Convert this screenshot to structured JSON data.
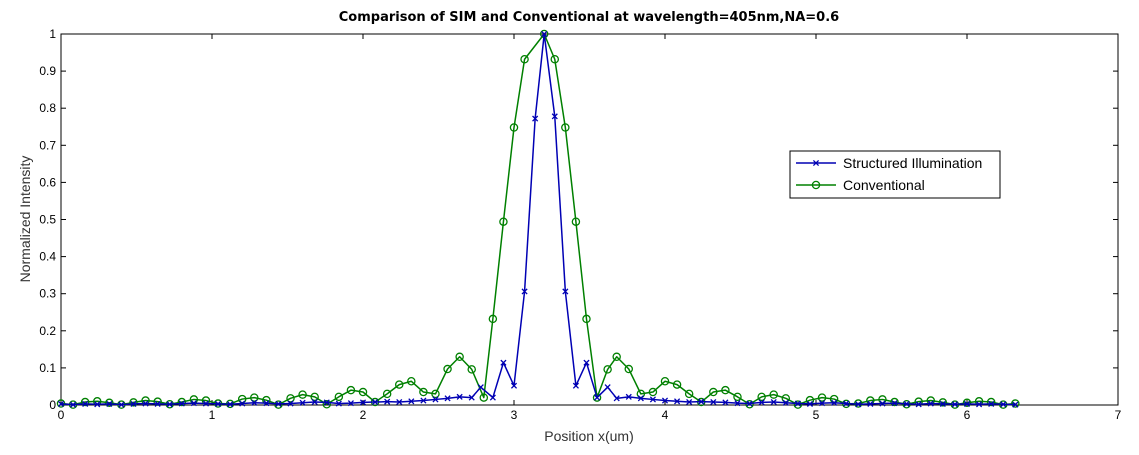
{
  "chart_data": {
    "type": "line",
    "title": "Comparison of SIM and Conventional at wavelength=405nm,NA=0.6",
    "xlabel": "Position x(um)",
    "ylabel": "Normalized Intensity",
    "xlim": [
      0,
      7
    ],
    "ylim": [
      0,
      1
    ],
    "xticks": [
      0,
      1,
      2,
      3,
      4,
      5,
      6,
      7
    ],
    "yticks": [
      0,
      0.1,
      0.2,
      0.3,
      0.4,
      0.5,
      0.6,
      0.7,
      0.8,
      0.9,
      1
    ],
    "grid": false,
    "legend_position": "center-right",
    "series": [
      {
        "name": "Structured Illumination",
        "color": "#0000b4",
        "marker": "x",
        "points": [
          [
            0.0,
            0.003
          ],
          [
            0.08,
            0.001
          ],
          [
            0.16,
            0.003
          ],
          [
            0.24,
            0.002
          ],
          [
            0.32,
            0.003
          ],
          [
            0.4,
            0.001
          ],
          [
            0.48,
            0.003
          ],
          [
            0.56,
            0.004
          ],
          [
            0.64,
            0.003
          ],
          [
            0.72,
            0.002
          ],
          [
            0.8,
            0.004
          ],
          [
            0.88,
            0.005
          ],
          [
            0.96,
            0.004
          ],
          [
            1.04,
            0.003
          ],
          [
            1.12,
            0.002
          ],
          [
            1.2,
            0.004
          ],
          [
            1.28,
            0.006
          ],
          [
            1.36,
            0.005
          ],
          [
            1.44,
            0.003
          ],
          [
            1.52,
            0.004
          ],
          [
            1.6,
            0.006
          ],
          [
            1.68,
            0.008
          ],
          [
            1.76,
            0.007
          ],
          [
            1.84,
            0.004
          ],
          [
            1.92,
            0.005
          ],
          [
            2.0,
            0.007
          ],
          [
            2.08,
            0.008
          ],
          [
            2.16,
            0.009
          ],
          [
            2.24,
            0.008
          ],
          [
            2.32,
            0.01
          ],
          [
            2.4,
            0.012
          ],
          [
            2.48,
            0.015
          ],
          [
            2.56,
            0.018
          ],
          [
            2.64,
            0.022
          ],
          [
            2.72,
            0.02
          ],
          [
            2.78,
            0.048
          ],
          [
            2.86,
            0.02
          ],
          [
            2.93,
            0.114
          ],
          [
            3.0,
            0.052
          ],
          [
            3.07,
            0.306
          ],
          [
            3.14,
            0.772
          ],
          [
            3.2,
            1.0
          ],
          [
            3.27,
            0.778
          ],
          [
            3.34,
            0.306
          ],
          [
            3.41,
            0.052
          ],
          [
            3.48,
            0.114
          ],
          [
            3.55,
            0.02
          ],
          [
            3.62,
            0.048
          ],
          [
            3.68,
            0.018
          ],
          [
            3.76,
            0.022
          ],
          [
            3.84,
            0.018
          ],
          [
            3.92,
            0.015
          ],
          [
            4.0,
            0.012
          ],
          [
            4.08,
            0.01
          ],
          [
            4.16,
            0.008
          ],
          [
            4.24,
            0.009
          ],
          [
            4.32,
            0.008
          ],
          [
            4.4,
            0.007
          ],
          [
            4.48,
            0.005
          ],
          [
            4.56,
            0.004
          ],
          [
            4.64,
            0.007
          ],
          [
            4.72,
            0.008
          ],
          [
            4.8,
            0.006
          ],
          [
            4.88,
            0.004
          ],
          [
            4.96,
            0.003
          ],
          [
            5.04,
            0.005
          ],
          [
            5.12,
            0.006
          ],
          [
            5.2,
            0.004
          ],
          [
            5.28,
            0.002
          ],
          [
            5.36,
            0.003
          ],
          [
            5.44,
            0.004
          ],
          [
            5.52,
            0.005
          ],
          [
            5.6,
            0.003
          ],
          [
            5.68,
            0.002
          ],
          [
            5.76,
            0.004
          ],
          [
            5.84,
            0.003
          ],
          [
            5.92,
            0.002
          ],
          [
            6.0,
            0.003
          ],
          [
            6.08,
            0.002
          ],
          [
            6.16,
            0.003
          ],
          [
            6.24,
            0.002
          ],
          [
            6.32,
            0.001
          ]
        ]
      },
      {
        "name": "Conventional",
        "color": "#008000",
        "marker": "o",
        "points": [
          [
            0.0,
            0.004
          ],
          [
            0.08,
            0.001
          ],
          [
            0.16,
            0.008
          ],
          [
            0.24,
            0.01
          ],
          [
            0.32,
            0.006
          ],
          [
            0.4,
            0.001
          ],
          [
            0.48,
            0.007
          ],
          [
            0.56,
            0.012
          ],
          [
            0.64,
            0.009
          ],
          [
            0.72,
            0.002
          ],
          [
            0.8,
            0.008
          ],
          [
            0.88,
            0.015
          ],
          [
            0.96,
            0.012
          ],
          [
            1.04,
            0.004
          ],
          [
            1.12,
            0.003
          ],
          [
            1.2,
            0.016
          ],
          [
            1.28,
            0.02
          ],
          [
            1.36,
            0.013
          ],
          [
            1.44,
            0.001
          ],
          [
            1.52,
            0.018
          ],
          [
            1.6,
            0.028
          ],
          [
            1.68,
            0.022
          ],
          [
            1.76,
            0.002
          ],
          [
            1.84,
            0.022
          ],
          [
            1.92,
            0.04
          ],
          [
            2.0,
            0.035
          ],
          [
            2.08,
            0.008
          ],
          [
            2.16,
            0.03
          ],
          [
            2.24,
            0.055
          ],
          [
            2.32,
            0.064
          ],
          [
            2.4,
            0.035
          ],
          [
            2.48,
            0.03
          ],
          [
            2.56,
            0.097
          ],
          [
            2.64,
            0.13
          ],
          [
            2.72,
            0.096
          ],
          [
            2.8,
            0.02
          ],
          [
            2.86,
            0.232
          ],
          [
            2.93,
            0.494
          ],
          [
            3.0,
            0.748
          ],
          [
            3.07,
            0.932
          ],
          [
            3.2,
            1.0
          ],
          [
            3.27,
            0.932
          ],
          [
            3.34,
            0.748
          ],
          [
            3.41,
            0.494
          ],
          [
            3.48,
            0.232
          ],
          [
            3.55,
            0.02
          ],
          [
            3.62,
            0.096
          ],
          [
            3.68,
            0.13
          ],
          [
            3.76,
            0.097
          ],
          [
            3.84,
            0.03
          ],
          [
            3.92,
            0.035
          ],
          [
            4.0,
            0.064
          ],
          [
            4.08,
            0.055
          ],
          [
            4.16,
            0.03
          ],
          [
            4.24,
            0.008
          ],
          [
            4.32,
            0.035
          ],
          [
            4.4,
            0.04
          ],
          [
            4.48,
            0.022
          ],
          [
            4.56,
            0.002
          ],
          [
            4.64,
            0.022
          ],
          [
            4.72,
            0.028
          ],
          [
            4.8,
            0.018
          ],
          [
            4.88,
            0.001
          ],
          [
            4.96,
            0.013
          ],
          [
            5.04,
            0.02
          ],
          [
            5.12,
            0.016
          ],
          [
            5.2,
            0.003
          ],
          [
            5.28,
            0.004
          ],
          [
            5.36,
            0.012
          ],
          [
            5.44,
            0.015
          ],
          [
            5.52,
            0.008
          ],
          [
            5.6,
            0.002
          ],
          [
            5.68,
            0.009
          ],
          [
            5.76,
            0.012
          ],
          [
            5.84,
            0.007
          ],
          [
            5.92,
            0.001
          ],
          [
            6.0,
            0.006
          ],
          [
            6.08,
            0.01
          ],
          [
            6.16,
            0.008
          ],
          [
            6.24,
            0.001
          ],
          [
            6.32,
            0.004
          ]
        ]
      }
    ]
  }
}
